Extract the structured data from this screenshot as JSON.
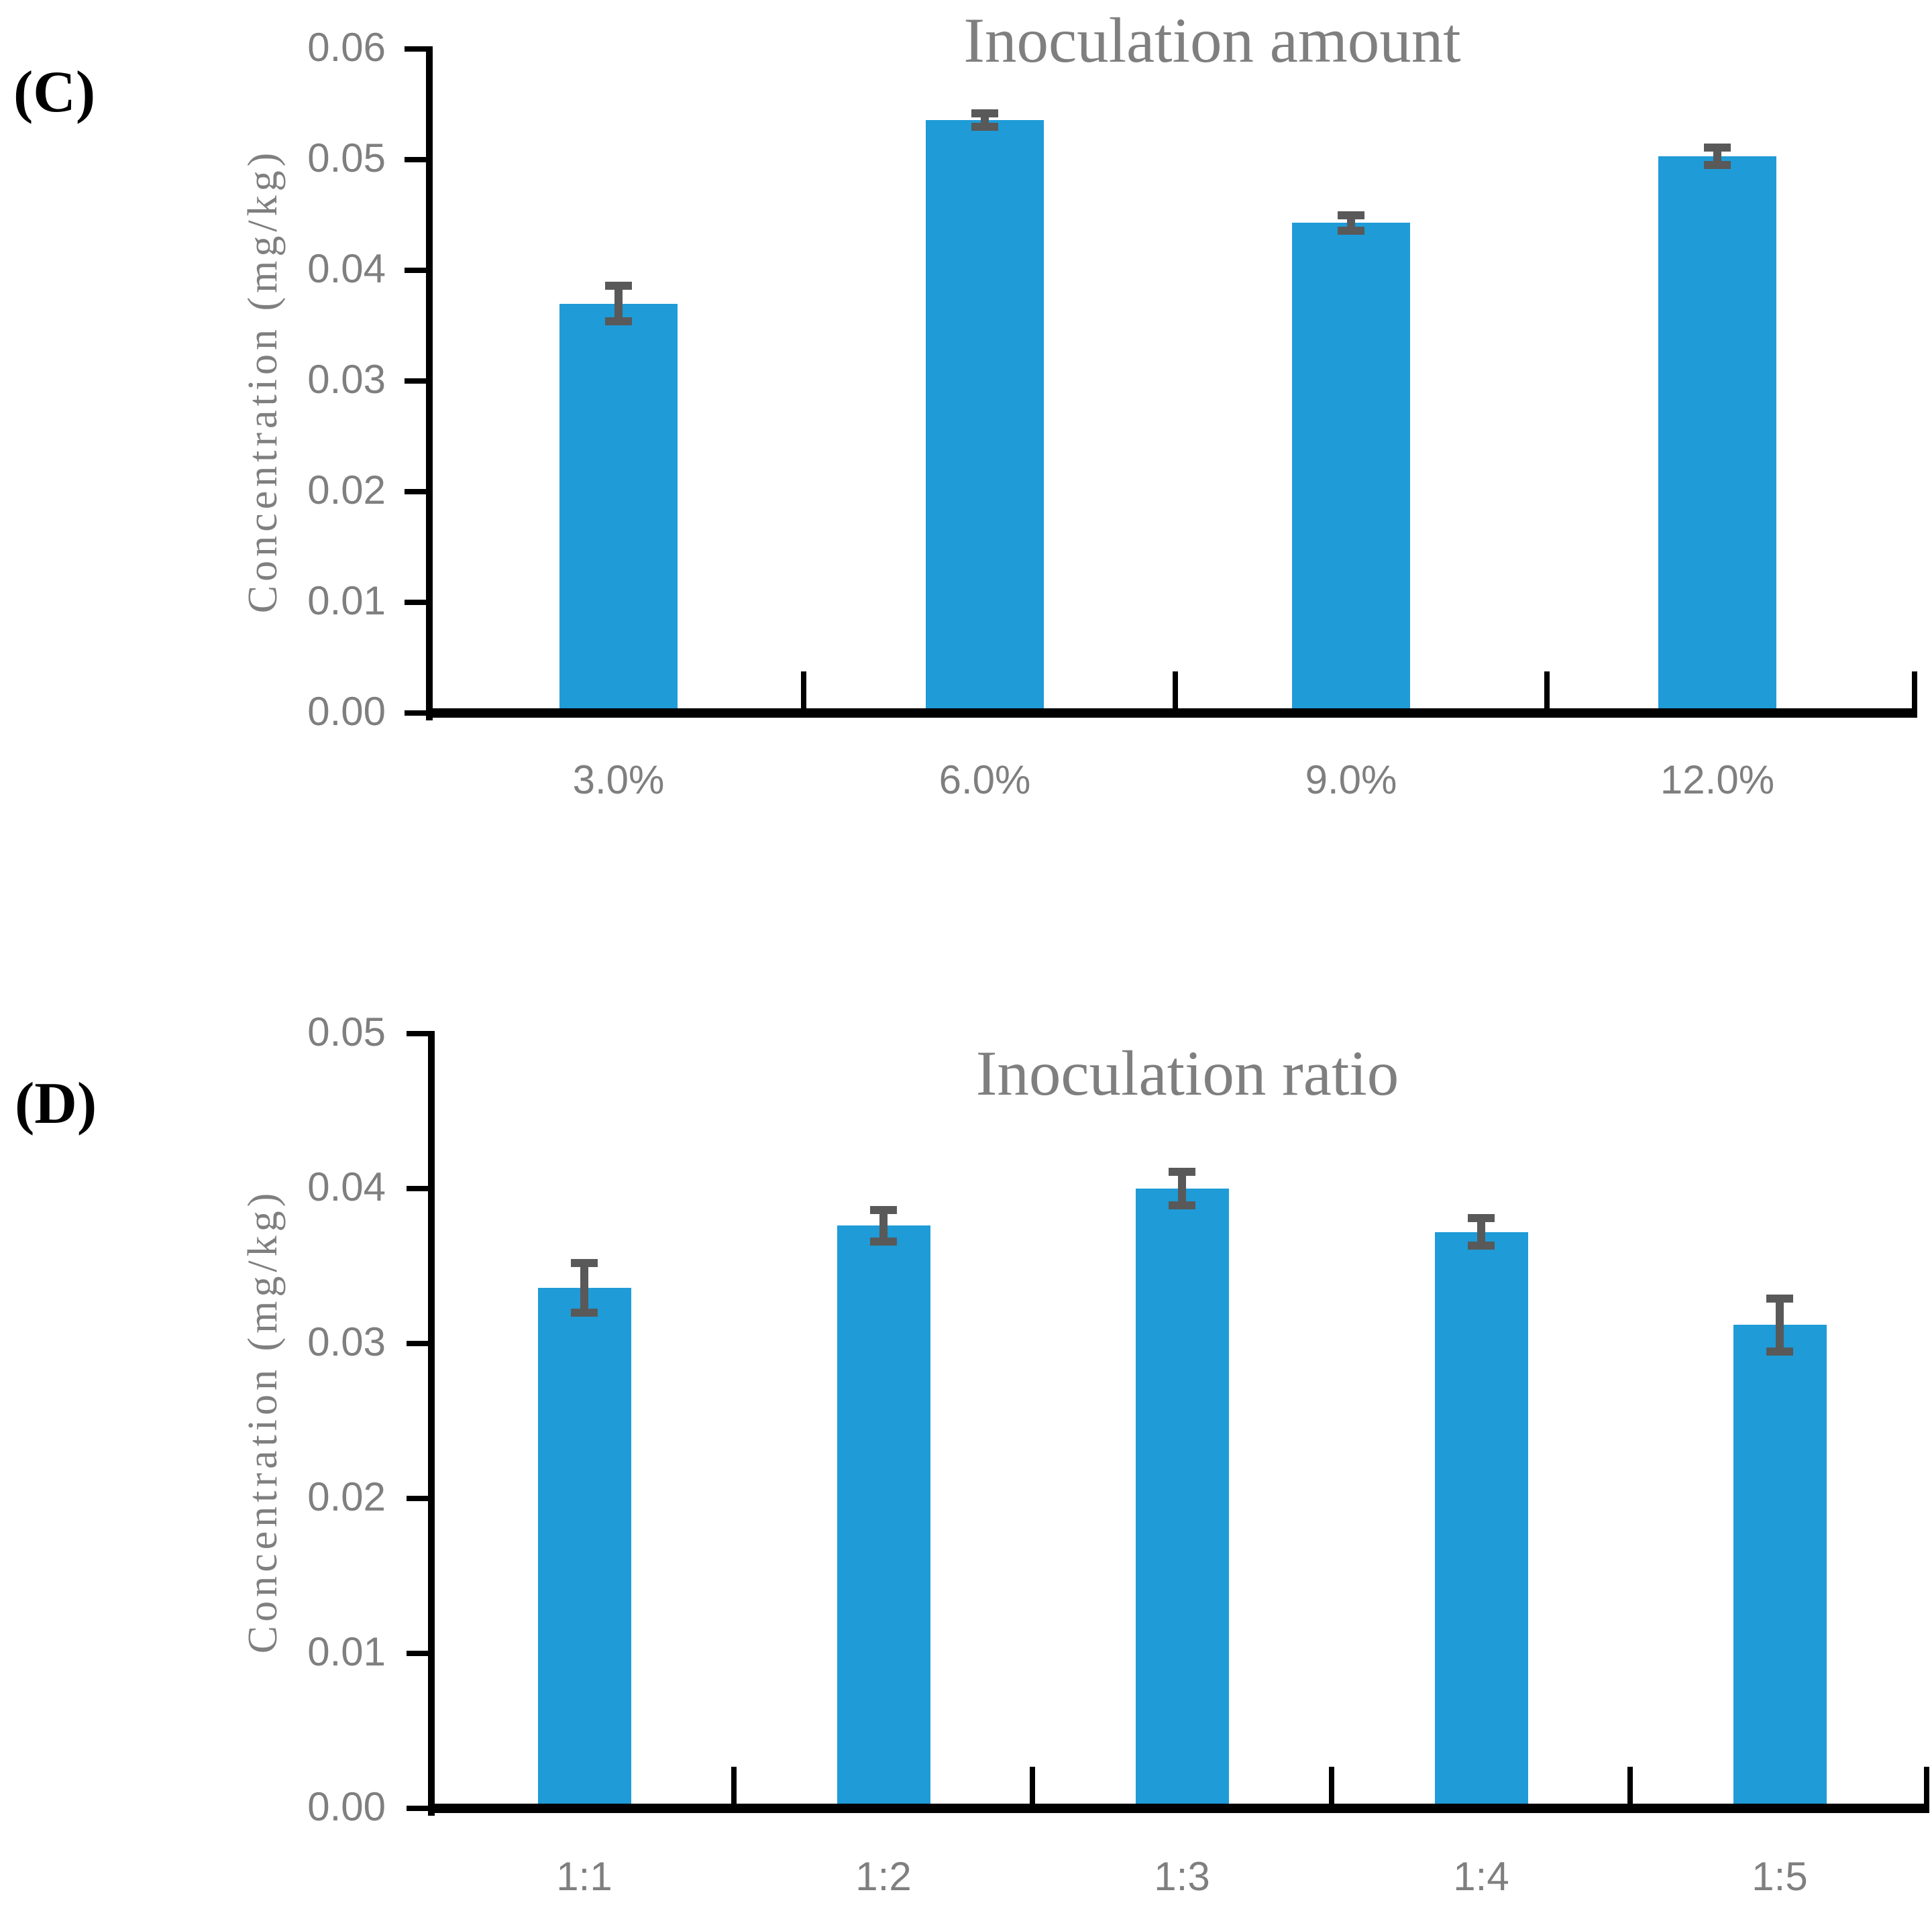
{
  "figure": {
    "background_color": "#FFFFFF",
    "panel_labels": [
      "(C)",
      "(D)"
    ]
  },
  "chart_data": [
    {
      "panel_label": "(C)",
      "type": "bar",
      "title": "Inoculation amount",
      "xlabel": "",
      "ylabel": "Concentration (mg/kg)",
      "categories": [
        "3.0%",
        "6.0%",
        "9.0%",
        "12.0%"
      ],
      "values": [
        0.037,
        0.0536,
        0.0443,
        0.0503
      ],
      "errors": [
        0.0016,
        0.0006,
        0.0007,
        0.0008
      ],
      "ylim": [
        0,
        0.06
      ],
      "ytick_labels": [
        "0.00",
        "0.01",
        "0.02",
        "0.03",
        "0.04",
        "0.05",
        "0.06"
      ],
      "grid": false,
      "legend": false,
      "bar_color": "#1F9BD7",
      "error_color": "#595959",
      "axis_color": "#000000",
      "label_color": "#7F7F7F",
      "title_color": "#7F7F7F"
    },
    {
      "panel_label": "(D)",
      "type": "bar",
      "title": "Inoculation ratio",
      "xlabel": "",
      "ylabel": "Concentration (mg/kg)",
      "categories": [
        "1:1",
        "1:2",
        "1:3",
        "1:4",
        "1:5"
      ],
      "values": [
        0.0336,
        0.0376,
        0.04,
        0.0372,
        0.0312
      ],
      "errors": [
        0.0016,
        0.001,
        0.0011,
        0.0009,
        0.0017
      ],
      "ylim": [
        0,
        0.05
      ],
      "ytick_labels": [
        "0.00",
        "0.01",
        "0.02",
        "0.03",
        "0.04",
        "0.05"
      ],
      "grid": false,
      "legend": false,
      "bar_color": "#1F9BD7",
      "error_color": "#595959",
      "axis_color": "#000000",
      "label_color": "#7F7F7F",
      "title_color": "#7F7F7F"
    }
  ]
}
